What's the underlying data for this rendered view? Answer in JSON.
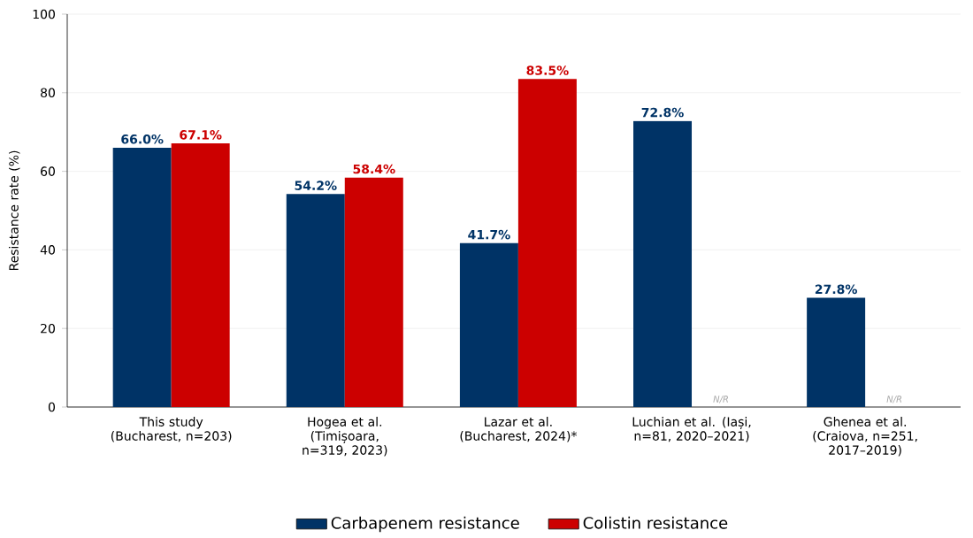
{
  "chart_data": {
    "type": "bar",
    "ylabel": "Resistance rate (%)",
    "categories": [
      "This study (Bucharest, n=203)",
      "Hogea et al. (Timișoara, n=319, 2023)",
      "Lazar et al. (Bucharest, 2024)*",
      "Luchian et al. (Iași, n=81, 2020–2021)",
      "Ghenea et al. (Craiova, n=251, 2017–2019)"
    ],
    "series": [
      {
        "name": "Carbapenem resistance",
        "color": "#003366",
        "values": [
          66.0,
          54.2,
          41.7,
          72.8,
          27.8
        ],
        "value_labels": [
          "66.0%",
          "54.2%",
          "41.7%",
          "72.8%",
          "27.8%"
        ]
      },
      {
        "name": "Colistin resistance",
        "color": "#cc0000",
        "values": [
          67.1,
          58.4,
          83.5,
          null,
          null
        ],
        "value_labels": [
          "67.1%",
          "58.4%",
          "83.5%",
          "N/R",
          "N/R"
        ]
      }
    ],
    "ylim": [
      0,
      100
    ],
    "yticks": [
      0,
      20,
      40,
      60,
      80,
      100
    ],
    "grid": "y",
    "legend": "bottom"
  }
}
